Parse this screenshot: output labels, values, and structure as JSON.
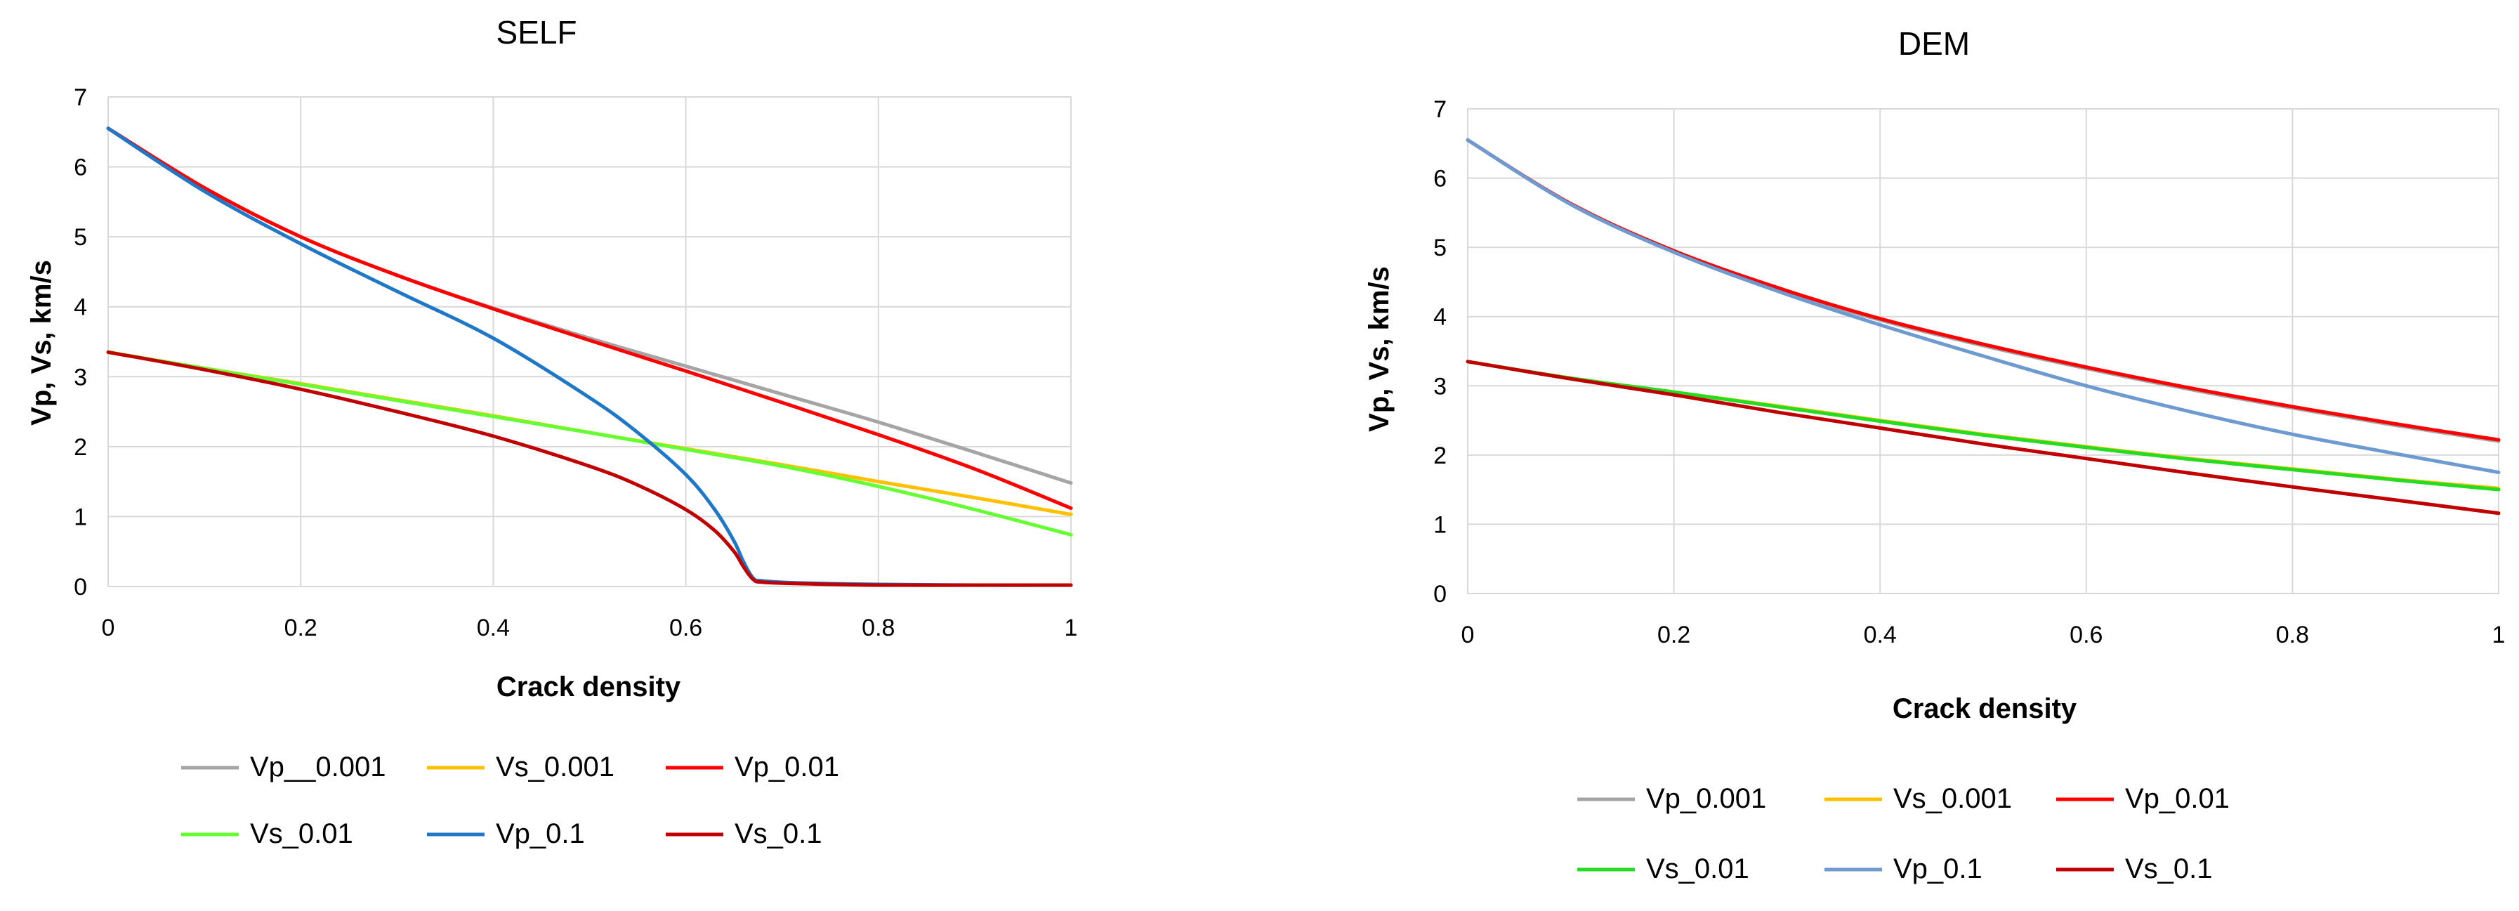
{
  "chart_data": [
    {
      "type": "line",
      "title": "SELF",
      "xlabel": "Crack density",
      "ylabel": "Vp, Vs, km/s",
      "xlim": [
        0,
        1
      ],
      "ylim": [
        0,
        7
      ],
      "xticks": [
        "0",
        "0.2",
        "0.4",
        "0.6",
        "0.8",
        "1"
      ],
      "yticks": [
        "0",
        "1",
        "2",
        "3",
        "4",
        "5",
        "6",
        "7"
      ],
      "legend_position": "bottom",
      "series": [
        {
          "name": "Vp__0.001",
          "color": "#a5a5a5",
          "x": [
            0,
            0.1,
            0.2,
            0.3,
            0.4,
            0.5,
            0.6,
            0.7,
            0.8,
            0.9,
            1.0
          ],
          "y": [
            6.55,
            5.7,
            5.0,
            4.45,
            3.98,
            3.55,
            3.15,
            2.75,
            2.35,
            1.92,
            1.48
          ]
        },
        {
          "name": "Vs_0.001",
          "color": "#ffc000",
          "x": [
            0,
            0.1,
            0.2,
            0.3,
            0.4,
            0.5,
            0.6,
            0.7,
            0.8,
            0.9,
            1.0
          ],
          "y": [
            3.35,
            3.12,
            2.9,
            2.67,
            2.44,
            2.2,
            1.97,
            1.74,
            1.5,
            1.27,
            1.03
          ]
        },
        {
          "name": "Vp_0.01",
          "color": "#ff0000",
          "x": [
            0,
            0.1,
            0.2,
            0.3,
            0.4,
            0.5,
            0.6,
            0.7,
            0.8,
            0.9,
            1.0
          ],
          "y": [
            6.55,
            5.7,
            5.0,
            4.45,
            3.97,
            3.52,
            3.08,
            2.63,
            2.17,
            1.68,
            1.12
          ]
        },
        {
          "name": "Vs_0.01",
          "color": "#66ff33",
          "x": [
            0,
            0.1,
            0.2,
            0.3,
            0.4,
            0.5,
            0.6,
            0.7,
            0.8,
            0.9,
            1.0
          ],
          "y": [
            3.35,
            3.12,
            2.89,
            2.66,
            2.43,
            2.2,
            1.96,
            1.72,
            1.43,
            1.1,
            0.74
          ]
        },
        {
          "name": "Vp_0.1",
          "color": "#1f77c8",
          "x": [
            0,
            0.1,
            0.2,
            0.3,
            0.4,
            0.5,
            0.55,
            0.6,
            0.63,
            0.65,
            0.66,
            0.67,
            0.68,
            0.72,
            0.8,
            0.9,
            1.0
          ],
          "y": [
            6.55,
            5.65,
            4.9,
            4.22,
            3.55,
            2.7,
            2.2,
            1.6,
            1.1,
            0.65,
            0.35,
            0.12,
            0.08,
            0.05,
            0.03,
            0.02,
            0.02
          ]
        },
        {
          "name": "Vs_0.1",
          "color": "#c00000",
          "x": [
            0,
            0.1,
            0.2,
            0.3,
            0.4,
            0.5,
            0.55,
            0.6,
            0.63,
            0.65,
            0.66,
            0.67,
            0.68,
            0.72,
            0.8,
            0.9,
            1.0
          ],
          "y": [
            3.35,
            3.1,
            2.82,
            2.5,
            2.15,
            1.72,
            1.45,
            1.1,
            0.8,
            0.5,
            0.28,
            0.1,
            0.06,
            0.04,
            0.02,
            0.02,
            0.02
          ]
        }
      ]
    },
    {
      "type": "line",
      "title": "DEM",
      "xlabel": "Crack density",
      "ylabel": "Vp, Vs, km/s",
      "xlim": [
        0,
        1
      ],
      "ylim": [
        0,
        7
      ],
      "xticks": [
        "0",
        "0.2",
        "0.4",
        "0.6",
        "0.8",
        "1"
      ],
      "yticks": [
        "0",
        "1",
        "2",
        "3",
        "4",
        "5",
        "6",
        "7"
      ],
      "legend_position": "bottom",
      "series": [
        {
          "name": "Vp_0.001",
          "color": "#a5a5a5",
          "x": [
            0,
            0.1,
            0.2,
            0.3,
            0.4,
            0.5,
            0.6,
            0.7,
            0.8,
            0.9,
            1.0
          ],
          "y": [
            6.55,
            5.62,
            4.93,
            4.4,
            3.95,
            3.58,
            3.25,
            2.95,
            2.68,
            2.43,
            2.2
          ]
        },
        {
          "name": "Vs_0.001",
          "color": "#ffc000",
          "x": [
            0,
            0.1,
            0.2,
            0.3,
            0.4,
            0.5,
            0.6,
            0.7,
            0.8,
            0.9,
            1.0
          ],
          "y": [
            3.35,
            3.11,
            2.91,
            2.71,
            2.5,
            2.3,
            2.12,
            1.95,
            1.8,
            1.65,
            1.52
          ]
        },
        {
          "name": "Vp_0.01",
          "color": "#ff0000",
          "x": [
            0,
            0.1,
            0.2,
            0.3,
            0.4,
            0.5,
            0.6,
            0.7,
            0.8,
            0.9,
            1.0
          ],
          "y": [
            6.55,
            5.63,
            4.95,
            4.42,
            3.97,
            3.6,
            3.27,
            2.97,
            2.7,
            2.45,
            2.22
          ]
        },
        {
          "name": "Vs_0.01",
          "color": "#22dd22",
          "x": [
            0,
            0.1,
            0.2,
            0.3,
            0.4,
            0.5,
            0.6,
            0.7,
            0.8,
            0.9,
            1.0
          ],
          "y": [
            3.35,
            3.11,
            2.91,
            2.7,
            2.49,
            2.29,
            2.11,
            1.94,
            1.79,
            1.64,
            1.5
          ]
        },
        {
          "name": "Vp_0.1",
          "color": "#6d9bd1",
          "x": [
            0,
            0.1,
            0.2,
            0.3,
            0.4,
            0.5,
            0.6,
            0.7,
            0.8,
            0.9,
            1.0
          ],
          "y": [
            6.55,
            5.62,
            4.93,
            4.37,
            3.88,
            3.43,
            3.0,
            2.63,
            2.3,
            2.02,
            1.75
          ]
        },
        {
          "name": "Vs_0.1",
          "color": "#c00000",
          "x": [
            0,
            0.1,
            0.2,
            0.3,
            0.4,
            0.5,
            0.6,
            0.7,
            0.8,
            0.9,
            1.0
          ],
          "y": [
            3.35,
            3.1,
            2.87,
            2.62,
            2.39,
            2.16,
            1.95,
            1.74,
            1.54,
            1.35,
            1.16
          ]
        }
      ]
    }
  ]
}
